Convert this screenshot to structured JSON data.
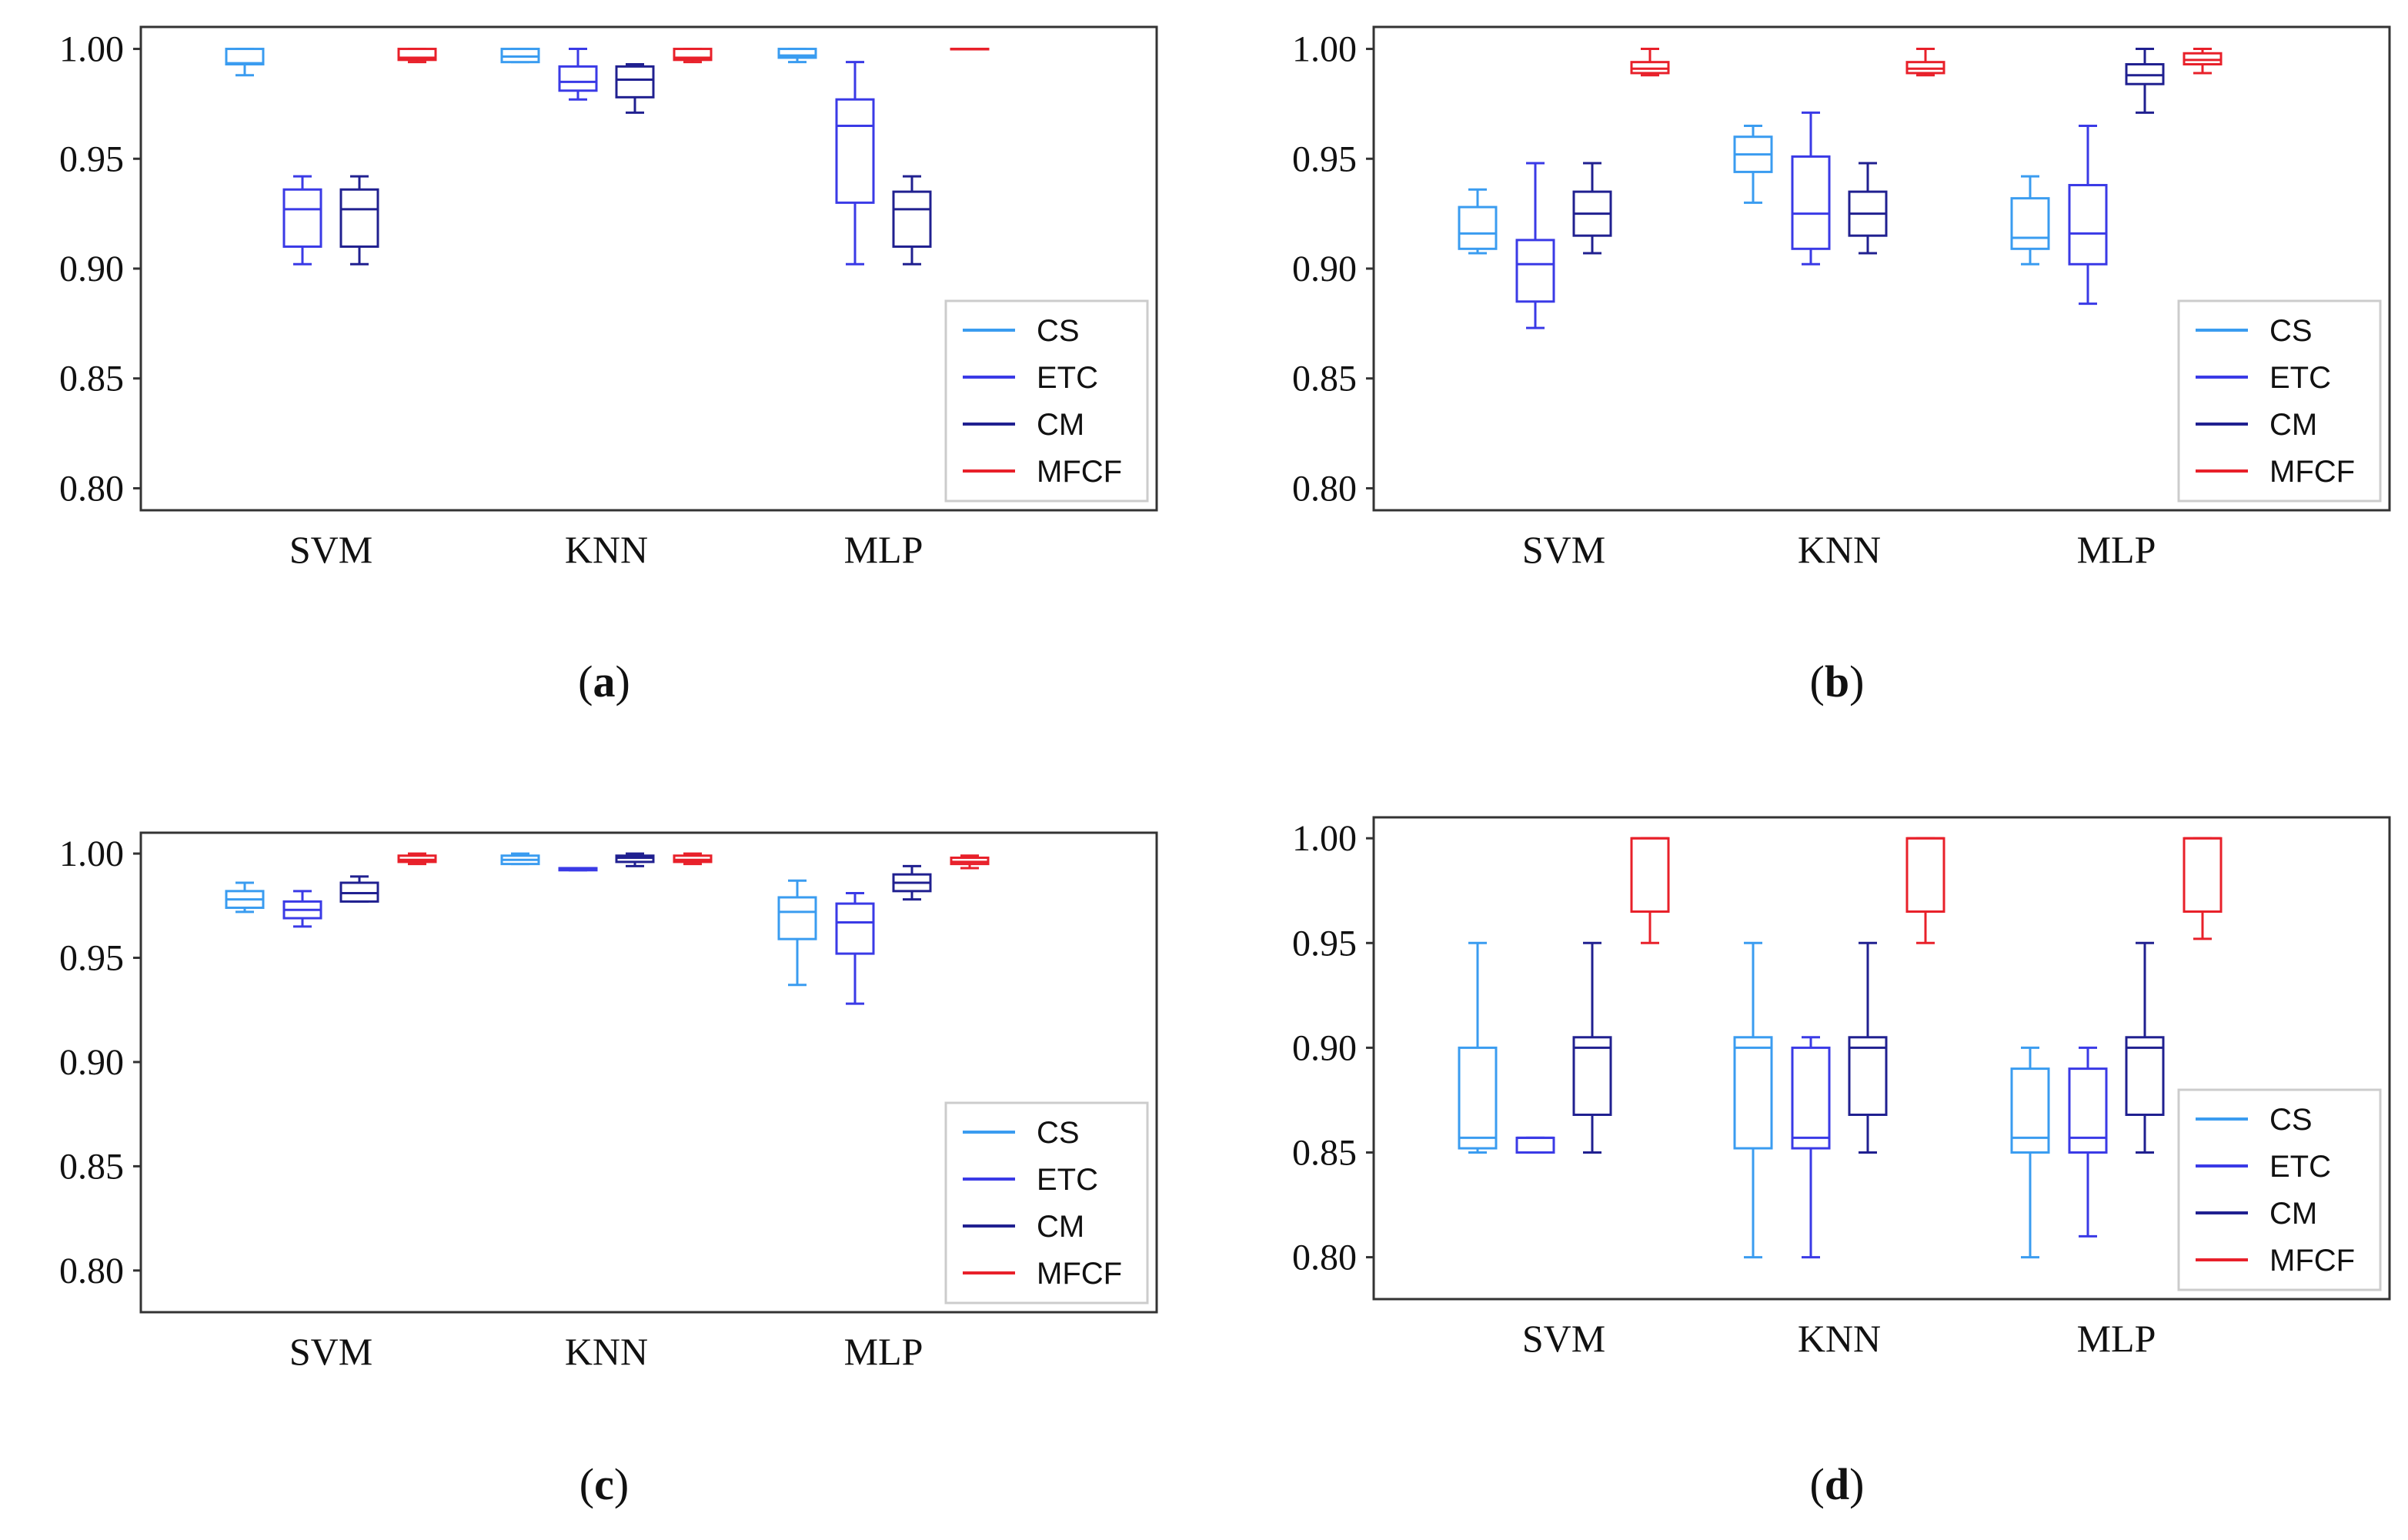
{
  "chart_data": [
    {
      "type": "box",
      "panel_label": "a",
      "categories": [
        "SVM",
        "KNN",
        "MLP"
      ],
      "yticks": [
        "1.00",
        "0.95",
        "0.90",
        "0.85",
        "0.80"
      ],
      "ylim": [
        0.79,
        1.01
      ],
      "legend": [
        "CS",
        "ETC",
        "CM",
        "MFCF"
      ],
      "legend_position": "bottom-right",
      "series": [
        {
          "name": "CS",
          "color": "#3a9cf0",
          "boxes": [
            {
              "min": 0.988,
              "q1": 0.993,
              "median": 0.9935,
              "q3": 1.0,
              "max": 1.0
            },
            {
              "min": 0.994,
              "q1": 0.994,
              "median": 0.9965,
              "q3": 1.0,
              "max": 1.0
            },
            {
              "min": 0.994,
              "q1": 0.996,
              "median": 0.997,
              "q3": 1.0,
              "max": 1.0
            }
          ]
        },
        {
          "name": "ETC",
          "color": "#3a3ae6",
          "boxes": [
            {
              "min": 0.902,
              "q1": 0.91,
              "median": 0.927,
              "q3": 0.936,
              "max": 0.942
            },
            {
              "min": 0.977,
              "q1": 0.981,
              "median": 0.985,
              "q3": 0.992,
              "max": 1.0
            },
            {
              "min": 0.902,
              "q1": 0.93,
              "median": 0.965,
              "q3": 0.977,
              "max": 0.994
            }
          ]
        },
        {
          "name": "CM",
          "color": "#202090",
          "boxes": [
            {
              "min": 0.902,
              "q1": 0.91,
              "median": 0.927,
              "q3": 0.936,
              "max": 0.942
            },
            {
              "min": 0.971,
              "q1": 0.978,
              "median": 0.986,
              "q3": 0.992,
              "max": 0.993
            },
            {
              "min": 0.902,
              "q1": 0.91,
              "median": 0.927,
              "q3": 0.935,
              "max": 0.942
            }
          ]
        },
        {
          "name": "MFCF",
          "color": "#e8202a",
          "boxes": [
            {
              "min": 0.994,
              "q1": 0.995,
              "median": 0.996,
              "q3": 1.0,
              "max": 1.0
            },
            {
              "min": 0.994,
              "q1": 0.995,
              "median": 0.996,
              "q3": 1.0,
              "max": 1.0
            },
            {
              "min": 1.0,
              "q1": 1.0,
              "median": 1.0,
              "q3": 1.0,
              "max": 1.0
            }
          ]
        }
      ]
    },
    {
      "type": "box",
      "panel_label": "b",
      "categories": [
        "SVM",
        "KNN",
        "MLP"
      ],
      "yticks": [
        "1.00",
        "0.95",
        "0.90",
        "0.85",
        "0.80"
      ],
      "ylim": [
        0.79,
        1.01
      ],
      "legend": [
        "CS",
        "ETC",
        "CM",
        "MFCF"
      ],
      "legend_position": "bottom-right",
      "series": [
        {
          "name": "CS",
          "color": "#3a9cf0",
          "boxes": [
            {
              "min": 0.907,
              "q1": 0.909,
              "median": 0.916,
              "q3": 0.928,
              "max": 0.936
            },
            {
              "min": 0.93,
              "q1": 0.944,
              "median": 0.952,
              "q3": 0.96,
              "max": 0.965
            },
            {
              "min": 0.902,
              "q1": 0.909,
              "median": 0.914,
              "q3": 0.932,
              "max": 0.942
            }
          ]
        },
        {
          "name": "ETC",
          "color": "#3a3ae6",
          "boxes": [
            {
              "min": 0.873,
              "q1": 0.885,
              "median": 0.902,
              "q3": 0.913,
              "max": 0.948
            },
            {
              "min": 0.902,
              "q1": 0.909,
              "median": 0.925,
              "q3": 0.951,
              "max": 0.971
            },
            {
              "min": 0.884,
              "q1": 0.902,
              "median": 0.916,
              "q3": 0.938,
              "max": 0.965
            }
          ]
        },
        {
          "name": "CM",
          "color": "#202090",
          "boxes": [
            {
              "min": 0.907,
              "q1": 0.915,
              "median": 0.925,
              "q3": 0.935,
              "max": 0.948
            },
            {
              "min": 0.907,
              "q1": 0.915,
              "median": 0.925,
              "q3": 0.935,
              "max": 0.948
            },
            {
              "min": 0.971,
              "q1": 0.984,
              "median": 0.988,
              "q3": 0.993,
              "max": 1.0
            }
          ]
        },
        {
          "name": "MFCF",
          "color": "#e8202a",
          "boxes": [
            {
              "min": 0.988,
              "q1": 0.989,
              "median": 0.991,
              "q3": 0.994,
              "max": 1.0
            },
            {
              "min": 0.988,
              "q1": 0.989,
              "median": 0.991,
              "q3": 0.994,
              "max": 1.0
            },
            {
              "min": 0.989,
              "q1": 0.993,
              "median": 0.995,
              "q3": 0.998,
              "max": 1.0
            }
          ]
        }
      ]
    },
    {
      "type": "box",
      "panel_label": "c",
      "categories": [
        "SVM",
        "KNN",
        "MLP"
      ],
      "yticks": [
        "1.00",
        "0.95",
        "0.90",
        "0.85",
        "0.80"
      ],
      "ylim": [
        0.78,
        1.01
      ],
      "legend": [
        "CS",
        "ETC",
        "CM",
        "MFCF"
      ],
      "legend_position": "bottom-right",
      "series": [
        {
          "name": "CS",
          "color": "#3a9cf0",
          "boxes": [
            {
              "min": 0.972,
              "q1": 0.974,
              "median": 0.978,
              "q3": 0.982,
              "max": 0.986
            },
            {
              "min": 0.995,
              "q1": 0.995,
              "median": 0.997,
              "q3": 0.999,
              "max": 1.0
            },
            {
              "min": 0.937,
              "q1": 0.959,
              "median": 0.972,
              "q3": 0.979,
              "max": 0.987
            }
          ]
        },
        {
          "name": "ETC",
          "color": "#3a3ae6",
          "boxes": [
            {
              "min": 0.965,
              "q1": 0.969,
              "median": 0.973,
              "q3": 0.977,
              "max": 0.982
            },
            {
              "min": 0.992,
              "q1": 0.992,
              "median": 0.993,
              "q3": 0.993,
              "max": 0.993
            },
            {
              "min": 0.928,
              "q1": 0.952,
              "median": 0.967,
              "q3": 0.976,
              "max": 0.981
            }
          ]
        },
        {
          "name": "CM",
          "color": "#202090",
          "boxes": [
            {
              "min": 0.977,
              "q1": 0.977,
              "median": 0.981,
              "q3": 0.986,
              "max": 0.989
            },
            {
              "min": 0.994,
              "q1": 0.996,
              "median": 0.998,
              "q3": 0.999,
              "max": 1.0
            },
            {
              "min": 0.978,
              "q1": 0.982,
              "median": 0.986,
              "q3": 0.99,
              "max": 0.994
            }
          ]
        },
        {
          "name": "MFCF",
          "color": "#e8202a",
          "boxes": [
            {
              "min": 0.995,
              "q1": 0.996,
              "median": 0.997,
              "q3": 0.999,
              "max": 1.0
            },
            {
              "min": 0.995,
              "q1": 0.996,
              "median": 0.997,
              "q3": 0.999,
              "max": 1.0
            },
            {
              "min": 0.993,
              "q1": 0.995,
              "median": 0.996,
              "q3": 0.998,
              "max": 0.999
            }
          ]
        }
      ]
    },
    {
      "type": "box",
      "panel_label": "d",
      "categories": [
        "SVM",
        "KNN",
        "MLP"
      ],
      "yticks": [
        "1.00",
        "0.95",
        "0.90",
        "0.85",
        "0.80"
      ],
      "ylim": [
        0.78,
        1.01
      ],
      "legend": [
        "CS",
        "ETC",
        "CM",
        "MFCF"
      ],
      "legend_position": "bottom-right",
      "series": [
        {
          "name": "CS",
          "color": "#3a9cf0",
          "boxes": [
            {
              "min": 0.85,
              "q1": 0.852,
              "median": 0.857,
              "q3": 0.9,
              "max": 0.95
            },
            {
              "min": 0.8,
              "q1": 0.852,
              "median": 0.9,
              "q3": 0.905,
              "max": 0.95
            },
            {
              "min": 0.8,
              "q1": 0.85,
              "median": 0.857,
              "q3": 0.89,
              "max": 0.9
            }
          ]
        },
        {
          "name": "ETC",
          "color": "#3a3ae6",
          "boxes": [
            {
              "min": 0.85,
              "q1": 0.85,
              "median": 0.857,
              "q3": 0.857,
              "max": 0.857
            },
            {
              "min": 0.8,
              "q1": 0.852,
              "median": 0.857,
              "q3": 0.9,
              "max": 0.905
            },
            {
              "min": 0.81,
              "q1": 0.85,
              "median": 0.857,
              "q3": 0.89,
              "max": 0.9
            }
          ]
        },
        {
          "name": "CM",
          "color": "#202090",
          "boxes": [
            {
              "min": 0.85,
              "q1": 0.868,
              "median": 0.9,
              "q3": 0.905,
              "max": 0.95
            },
            {
              "min": 0.85,
              "q1": 0.868,
              "median": 0.9,
              "q3": 0.905,
              "max": 0.95
            },
            {
              "min": 0.85,
              "q1": 0.868,
              "median": 0.9,
              "q3": 0.905,
              "max": 0.95
            }
          ]
        },
        {
          "name": "MFCF",
          "color": "#e8202a",
          "boxes": [
            {
              "min": 0.95,
              "q1": 0.965,
              "median": 1.0,
              "q3": 1.0,
              "max": 1.0
            },
            {
              "min": 0.95,
              "q1": 0.965,
              "median": 1.0,
              "q3": 1.0,
              "max": 1.0
            },
            {
              "min": 0.952,
              "q1": 0.965,
              "median": 1.0,
              "q3": 1.0,
              "max": 1.0
            }
          ]
        }
      ]
    }
  ]
}
